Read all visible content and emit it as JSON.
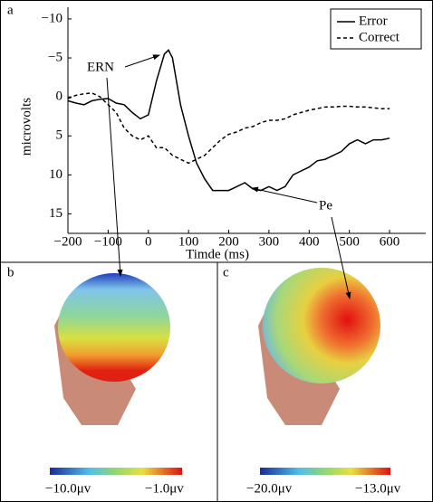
{
  "chart_data": {
    "type": "line",
    "panel_label": "a",
    "x_label": "Timde (ms)",
    "y_label": "microvolts",
    "x": [
      -200,
      -180,
      -160,
      -140,
      -120,
      -100,
      -80,
      -60,
      -40,
      -20,
      0,
      20,
      40,
      50,
      60,
      80,
      100,
      120,
      140,
      160,
      180,
      200,
      220,
      240,
      260,
      280,
      300,
      320,
      340,
      360,
      380,
      400,
      420,
      440,
      460,
      480,
      500,
      520,
      540,
      560,
      580,
      600
    ],
    "series": [
      {
        "name": "Error",
        "color": "#000000",
        "dash": "solid",
        "values": [
          0.5,
          0.8,
          1,
          0.5,
          0.3,
          0.2,
          0.8,
          1,
          2,
          2.8,
          2.3,
          -2,
          -5.5,
          -6,
          -5,
          1,
          5,
          8.5,
          10.5,
          12,
          12,
          12,
          11.5,
          11,
          11.8,
          12,
          11.5,
          12,
          11.5,
          10,
          9.5,
          9,
          8.2,
          8,
          7.5,
          7,
          6,
          5.5,
          6,
          5.5,
          5.5,
          5.3
        ]
      },
      {
        "name": "Correct",
        "color": "#000000",
        "dash": "dashed",
        "values": [
          0.2,
          -0.2,
          -0.4,
          -0.5,
          0,
          1,
          2,
          4,
          5,
          5.5,
          5,
          6.5,
          6.5,
          7,
          7.5,
          8,
          8.5,
          8,
          7.5,
          6.5,
          5.5,
          4.8,
          4.5,
          4,
          3.8,
          3.3,
          3,
          3,
          2.8,
          2.3,
          2,
          1.7,
          1.5,
          1.3,
          1.3,
          1.2,
          1.2,
          1.3,
          1.3,
          1.4,
          1.5,
          1.5
        ]
      }
    ],
    "xlim": [
      -200,
      690
    ],
    "ylim": [
      -11.5,
      17.5
    ],
    "y_inverted": true,
    "xticks": [
      {
        "value": -200,
        "label": "−200"
      },
      {
        "value": -100,
        "label": "−100"
      },
      0,
      100,
      200,
      300,
      400,
      500,
      600
    ],
    "yticks": [
      {
        "value": -10,
        "label": "−10"
      },
      {
        "value": -5,
        "label": "−5"
      },
      0,
      5,
      10,
      15
    ],
    "legend": "upper right",
    "annotations": [
      {
        "text": "ERN"
      },
      {
        "text": "Pe"
      }
    ]
  },
  "panels": [
    {
      "label": "b",
      "colorbar": {
        "min_label": "−10.0μv",
        "max_label": "−1.0μv"
      }
    },
    {
      "label": "c",
      "colorbar": {
        "min_label": "−20.0μv",
        "max_label": "−13.0μv"
      }
    }
  ]
}
